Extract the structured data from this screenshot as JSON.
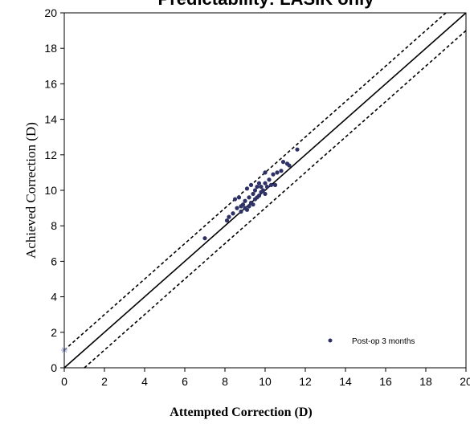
{
  "chart_data": {
    "type": "scatter",
    "title": "Predictability: LASIK only",
    "xlabel": "Attempted   Correction   (D)",
    "ylabel": "Achieved  Correction  (D)",
    "xlim": [
      0,
      20
    ],
    "ylim": [
      0,
      20
    ],
    "xticks": [
      "0",
      "2",
      "4",
      "6",
      "8",
      "10",
      "12",
      "14",
      "16",
      "18",
      "20"
    ],
    "yticks": [
      "0",
      "2",
      "4",
      "6",
      "8",
      "10",
      "12",
      "14",
      "16",
      "18",
      "20"
    ],
    "grid": false,
    "legend_position": "bottom-right",
    "colors": {
      "points": "#2e3166",
      "lines": "#000000",
      "origin_marker": "#9aa7d6"
    },
    "reference_lines": [
      {
        "name": "y = x",
        "style": "solid",
        "offset": 0
      },
      {
        "name": "+1 D",
        "style": "dashed",
        "offset": 1
      },
      {
        "name": "-1 D",
        "style": "dashed",
        "offset": -1
      }
    ],
    "series": [
      {
        "name": "Post-op 3 months",
        "points": [
          [
            7.0,
            7.3
          ],
          [
            8.1,
            8.3
          ],
          [
            8.2,
            8.5
          ],
          [
            8.4,
            8.7
          ],
          [
            8.5,
            9.5
          ],
          [
            8.6,
            9.0
          ],
          [
            8.7,
            9.6
          ],
          [
            8.8,
            8.8
          ],
          [
            8.8,
            9.1
          ],
          [
            8.9,
            9.2
          ],
          [
            9.0,
            9.0
          ],
          [
            9.0,
            9.4
          ],
          [
            9.1,
            8.9
          ],
          [
            9.1,
            10.1
          ],
          [
            9.2,
            9.1
          ],
          [
            9.2,
            9.6
          ],
          [
            9.3,
            9.3
          ],
          [
            9.3,
            10.3
          ],
          [
            9.4,
            9.2
          ],
          [
            9.4,
            9.8
          ],
          [
            9.5,
            9.5
          ],
          [
            9.5,
            10.0
          ],
          [
            9.6,
            9.6
          ],
          [
            9.6,
            10.2
          ],
          [
            9.7,
            9.7
          ],
          [
            9.7,
            10.4
          ],
          [
            9.8,
            9.9
          ],
          [
            9.8,
            10.2
          ],
          [
            9.9,
            10.0
          ],
          [
            10.0,
            9.8
          ],
          [
            10.0,
            10.4
          ],
          [
            10.0,
            11.0
          ],
          [
            10.1,
            10.2
          ],
          [
            10.2,
            10.6
          ],
          [
            10.3,
            10.3
          ],
          [
            10.4,
            10.9
          ],
          [
            10.5,
            10.3
          ],
          [
            10.6,
            11.0
          ],
          [
            10.8,
            11.1
          ],
          [
            10.9,
            11.6
          ],
          [
            11.1,
            11.5
          ],
          [
            11.2,
            11.4
          ],
          [
            11.6,
            12.3
          ]
        ]
      }
    ],
    "origin_marker": [
      0,
      1
    ]
  }
}
